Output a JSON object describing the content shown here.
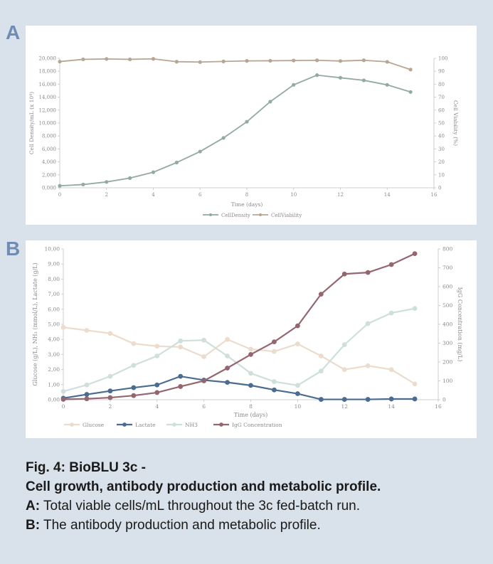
{
  "panels": {
    "a_letter": "A",
    "b_letter": "B"
  },
  "caption": {
    "title1": "Fig. 4: BioBLU 3c -",
    "title2": "Cell growth, antibody production and metabolic profile.",
    "line_a_prefix": "A:",
    "line_a_text": " Total viable cells/mL throughout the 3c fed-batch run.",
    "line_b_prefix": "B:",
    "line_b_text": " The antibody production and metabolic profile."
  },
  "colors": {
    "background": "#d9e2ea",
    "letter": "#6f8db4",
    "cell_density": "#93aaa3",
    "cell_viability": "#b8a694",
    "glucose": "#ecdccd",
    "lactate": "#4a6c91",
    "nh3": "#cfe0dc",
    "igg": "#946670"
  },
  "chart_data": [
    {
      "type": "line",
      "x": [
        0,
        1,
        2,
        3,
        4,
        5,
        6,
        7,
        8,
        9,
        10,
        11,
        12,
        13,
        14,
        15
      ],
      "xlabel": "Time (days)",
      "ylabel": "Cell Density/mL (x 10⁴)",
      "y2label": "Cell Viability (%)",
      "xlim": [
        0,
        16
      ],
      "ylim": [
        0,
        20000
      ],
      "y2lim": [
        0,
        100
      ],
      "xticks": [
        "0",
        "2",
        "4",
        "6",
        "8",
        "10",
        "12",
        "14",
        "16"
      ],
      "yticks": [
        "0,000",
        "2,000",
        "4,000",
        "6,000",
        "8,000",
        "10,000",
        "12,000",
        "14,000",
        "16,000",
        "18,000",
        "20,000"
      ],
      "y2ticks": [
        "0",
        "10",
        "20",
        "30",
        "40",
        "50",
        "60",
        "70",
        "80",
        "90",
        "100"
      ],
      "legend_position": "bottom",
      "grid": false,
      "series": [
        {
          "name": "CellDensity",
          "axis": "left",
          "color": "#93aaa3",
          "values": [
            300,
            500,
            900,
            1500,
            2400,
            3900,
            5600,
            7700,
            10200,
            13300,
            15900,
            17400,
            17000,
            16600,
            15900,
            14800
          ]
        },
        {
          "name": "CellViability",
          "axis": "right",
          "color": "#b8a694",
          "values": [
            97.5,
            99.2,
            99.5,
            99.2,
            99.6,
            97.4,
            97.1,
            97.6,
            98.0,
            98.1,
            98.3,
            98.5,
            97.9,
            98.5,
            97.3,
            91.3
          ]
        }
      ]
    },
    {
      "type": "line",
      "x": [
        0,
        1,
        2,
        3,
        4,
        5,
        6,
        7,
        8,
        9,
        10,
        11,
        12,
        13,
        14,
        15
      ],
      "xlabel": "Time (days)",
      "ylabel": "Glucose (g/L), NH₃ (mmol/L), Lactate (g/L)",
      "y2label": "IgG Concentration (mg/L)",
      "xlim": [
        0,
        16
      ],
      "ylim": [
        0,
        10
      ],
      "y2lim": [
        0,
        800
      ],
      "xticks": [
        "0",
        "2",
        "4",
        "6",
        "8",
        "10",
        "12",
        "14",
        "16"
      ],
      "yticks": [
        "0,00",
        "1,00",
        "2,00",
        "3,00",
        "4,00",
        "5,00",
        "6,00",
        "7,00",
        "8,00",
        "9,00",
        "10,00"
      ],
      "y2ticks": [
        "0",
        "100",
        "200",
        "300",
        "400",
        "500",
        "600",
        "700",
        "800"
      ],
      "legend_position": "bottom",
      "grid": false,
      "series": [
        {
          "name": "Glucose",
          "axis": "left",
          "color": "#ecdccd",
          "values": [
            4.8,
            4.6,
            4.4,
            3.72,
            3.55,
            3.5,
            2.85,
            4.0,
            3.35,
            3.2,
            3.7,
            2.9,
            2.0,
            2.25,
            2.0,
            1.05
          ]
        },
        {
          "name": "Lactate",
          "axis": "left",
          "color": "#4a6c91",
          "values": [
            0.1,
            0.35,
            0.58,
            0.8,
            0.98,
            1.55,
            1.3,
            1.15,
            0.95,
            0.65,
            0.4,
            0.02,
            0.02,
            0.02,
            0.05,
            0.05
          ]
        },
        {
          "name": "NH3",
          "axis": "left",
          "color": "#cfe0dc",
          "values": [
            0.55,
            0.98,
            1.55,
            2.28,
            2.9,
            3.9,
            3.95,
            2.9,
            1.75,
            1.2,
            0.95,
            1.9,
            3.65,
            5.05,
            5.75,
            6.05
          ]
        },
        {
          "name": "IgG Concentration",
          "axis": "right",
          "color": "#946670",
          "values": [
            2,
            5,
            11,
            22,
            38,
            70,
            100,
            168,
            240,
            307,
            392,
            560,
            667,
            675,
            717,
            775
          ]
        }
      ]
    }
  ]
}
